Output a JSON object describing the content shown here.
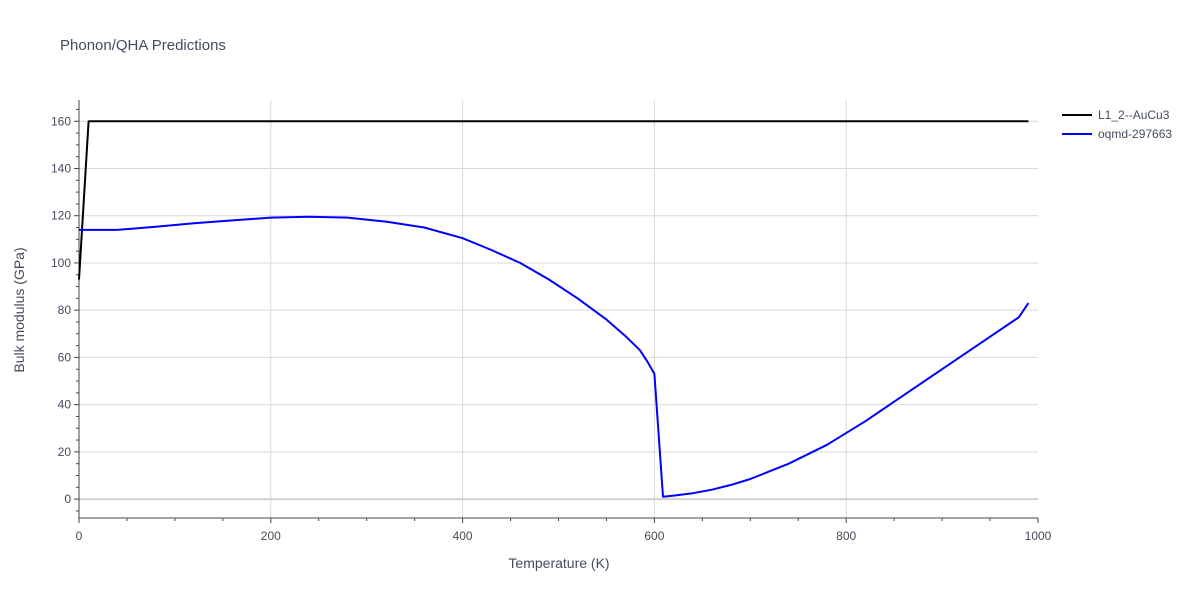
{
  "chart_data": {
    "type": "line",
    "title": "Phonon/QHA Predictions",
    "xlabel": "Temperature (K)",
    "ylabel": "Bulk modulus (GPa)",
    "xlim": [
      0,
      1000
    ],
    "ylim": [
      -8,
      169
    ],
    "xticks": [
      0,
      200,
      400,
      600,
      800,
      1000
    ],
    "yticks": [
      0,
      20,
      40,
      60,
      80,
      100,
      120,
      140,
      160
    ],
    "grid": true,
    "legend_position": "top-right",
    "series": [
      {
        "name": "L1_2--AuCu3",
        "color": "#000000",
        "points": [
          [
            0,
            93
          ],
          [
            10,
            160
          ],
          [
            990,
            160
          ]
        ]
      },
      {
        "name": "oqmd-297663",
        "color": "#0000ff",
        "points": [
          [
            0,
            114
          ],
          [
            40,
            114
          ],
          [
            80,
            115.3
          ],
          [
            120,
            116.8
          ],
          [
            160,
            118
          ],
          [
            200,
            119.2
          ],
          [
            240,
            119.6
          ],
          [
            280,
            119.2
          ],
          [
            320,
            117.5
          ],
          [
            360,
            115
          ],
          [
            400,
            110.5
          ],
          [
            430,
            105.5
          ],
          [
            460,
            100
          ],
          [
            490,
            93
          ],
          [
            520,
            85
          ],
          [
            550,
            76
          ],
          [
            570,
            69
          ],
          [
            585,
            63
          ],
          [
            593,
            58
          ],
          [
            600,
            53
          ],
          [
            609,
            1
          ],
          [
            620,
            1.5
          ],
          [
            640,
            2.5
          ],
          [
            660,
            4
          ],
          [
            680,
            6
          ],
          [
            700,
            8.5
          ],
          [
            740,
            15
          ],
          [
            780,
            23
          ],
          [
            820,
            33
          ],
          [
            860,
            44
          ],
          [
            900,
            55
          ],
          [
            940,
            66
          ],
          [
            980,
            77
          ],
          [
            990,
            83
          ]
        ]
      }
    ]
  }
}
